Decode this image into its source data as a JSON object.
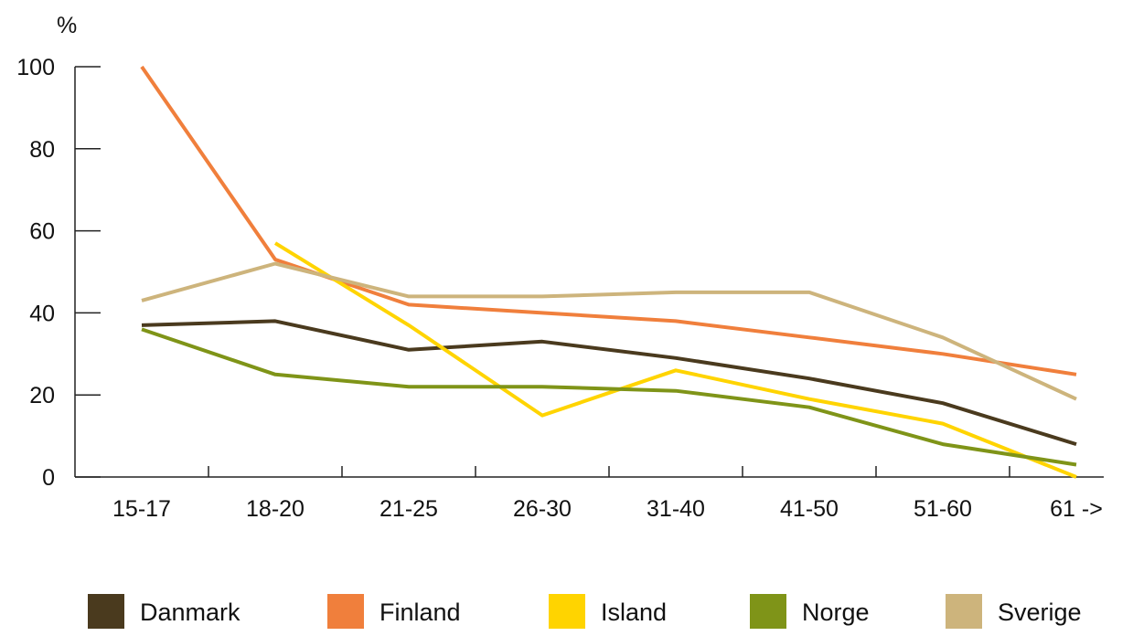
{
  "chart_data": {
    "type": "line",
    "title": "",
    "xlabel": "",
    "ylabel": "%",
    "categories": [
      "15-17",
      "18-20",
      "21-25",
      "26-30",
      "31-40",
      "41-50",
      "51-60",
      "61 ->"
    ],
    "yticks": [
      "0",
      "20",
      "40",
      "60",
      "80",
      "100"
    ],
    "ylim": [
      0,
      100
    ],
    "grid": false,
    "legend_position": "bottom",
    "series": [
      {
        "name": "Danmark",
        "color": "#4a3a1e",
        "values": [
          37,
          38,
          31,
          33,
          29,
          24,
          18,
          8
        ]
      },
      {
        "name": "Finland",
        "color": "#f07f3c",
        "values": [
          100,
          53,
          42,
          40,
          38,
          34,
          30,
          25
        ]
      },
      {
        "name": "Island",
        "color": "#ffd400",
        "values": [
          null,
          57,
          37,
          15,
          26,
          19,
          13,
          0
        ]
      },
      {
        "name": "Norge",
        "color": "#7f9418",
        "values": [
          36,
          25,
          22,
          22,
          21,
          17,
          8,
          3
        ]
      },
      {
        "name": "Sverige",
        "color": "#cdb47c",
        "values": [
          43,
          52,
          44,
          44,
          45,
          45,
          34,
          19
        ]
      }
    ]
  }
}
